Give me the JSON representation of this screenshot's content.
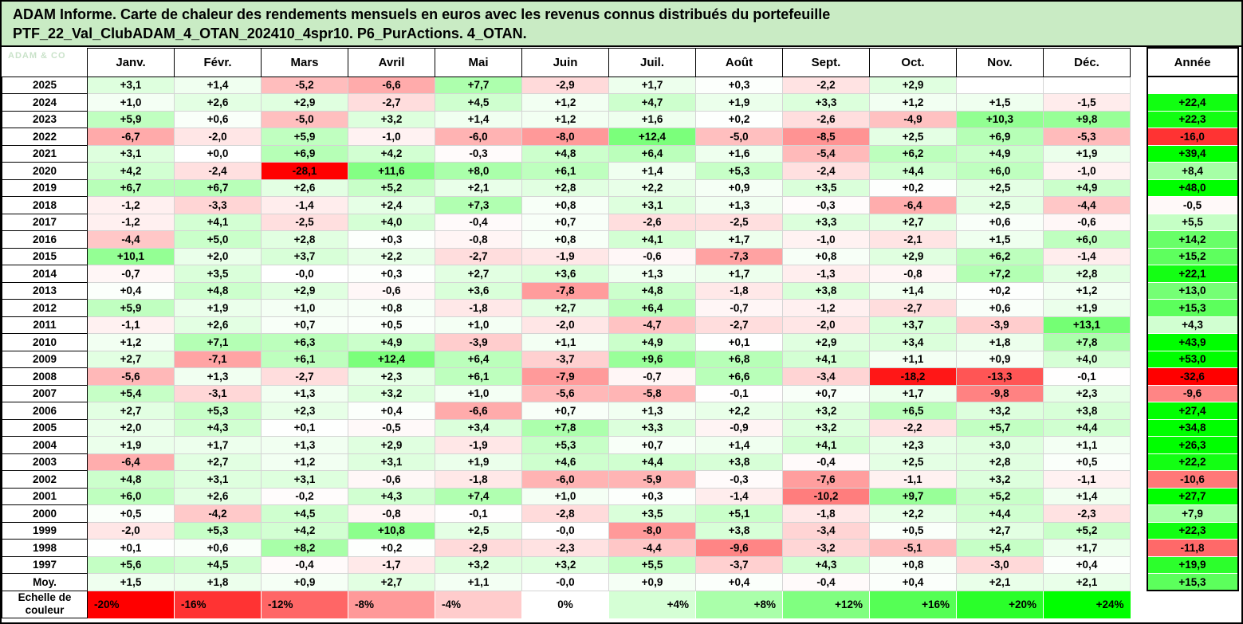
{
  "page": {
    "title_line1": "ADAM Informe. Carte de chaleur des rendements mensuels en euros avec les revenus connus distribués du portefeuille",
    "title_line2": "PTF_22_Val_ClubADAM_4_OTAN_202410_4spr10. P6_PurActions. 4_OTAN.",
    "title_bg": "#c9ebc4",
    "watermark": "ADAM & CO"
  },
  "chart_data": {
    "type": "heatmap",
    "title": "ADAM Informe. Carte de chaleur des rendements mensuels en euros avec les revenus connus distribués du portefeuille PTF_22_Val_ClubADAM_4_OTAN_202410_4spr10. P6_PurActions. 4_OTAN.",
    "columns": [
      "Janv.",
      "Févr.",
      "Mars",
      "Avril",
      "Mai",
      "Juin",
      "Juil.",
      "Août",
      "Sept.",
      "Oct.",
      "Nov.",
      "Déc."
    ],
    "annual_header": "Année",
    "rows": [
      {
        "label": "2025",
        "months": [
          "+3,1",
          "+1,4",
          "-5,2",
          "-6,6",
          "+7,7",
          "-2,9",
          "+1,7",
          "+0,3",
          "-2,2",
          "+2,9",
          "",
          ""
        ],
        "year": ""
      },
      {
        "label": "2024",
        "months": [
          "+1,0",
          "+2,6",
          "+2,9",
          "-2,7",
          "+4,5",
          "+1,2",
          "+4,7",
          "+1,9",
          "+3,3",
          "+1,2",
          "+1,5",
          "-1,5"
        ],
        "year": "+22,4"
      },
      {
        "label": "2023",
        "months": [
          "+5,9",
          "+0,6",
          "-5,0",
          "+3,2",
          "+1,4",
          "+1,2",
          "+1,6",
          "+0,2",
          "-2,6",
          "-4,9",
          "+10,3",
          "+9,8"
        ],
        "year": "+22,3"
      },
      {
        "label": "2022",
        "months": [
          "-6,7",
          "-2,0",
          "+5,9",
          "-1,0",
          "-6,0",
          "-8,0",
          "+12,4",
          "-5,0",
          "-8,5",
          "+2,5",
          "+6,9",
          "-5,3"
        ],
        "year": "-16,0"
      },
      {
        "label": "2021",
        "months": [
          "+3,1",
          "+0,0",
          "+6,9",
          "+4,2",
          "-0,3",
          "+4,8",
          "+6,4",
          "+1,6",
          "-5,4",
          "+6,2",
          "+4,9",
          "+1,9"
        ],
        "year": "+39,4"
      },
      {
        "label": "2020",
        "months": [
          "+4,2",
          "-2,4",
          "-28,1",
          "+11,6",
          "+8,0",
          "+6,1",
          "+1,4",
          "+5,3",
          "-2,4",
          "+4,4",
          "+6,0",
          "-1,0"
        ],
        "year": "+8,4"
      },
      {
        "label": "2019",
        "months": [
          "+6,7",
          "+6,7",
          "+2,6",
          "+5,2",
          "+2,1",
          "+2,8",
          "+2,2",
          "+0,9",
          "+3,5",
          "+0,2",
          "+2,5",
          "+4,9"
        ],
        "year": "+48,0"
      },
      {
        "label": "2018",
        "months": [
          "-1,2",
          "-3,3",
          "-1,4",
          "+2,4",
          "+7,3",
          "+0,8",
          "+3,1",
          "+1,3",
          "-0,3",
          "-6,4",
          "+2,5",
          "-4,4"
        ],
        "year": "-0,5"
      },
      {
        "label": "2017",
        "months": [
          "-1,2",
          "+4,1",
          "-2,5",
          "+4,0",
          "-0,4",
          "+0,7",
          "-2,6",
          "-2,5",
          "+3,3",
          "+2,7",
          "+0,6",
          "-0,6"
        ],
        "year": "+5,5"
      },
      {
        "label": "2016",
        "months": [
          "-4,4",
          "+5,0",
          "+2,8",
          "+0,3",
          "-0,8",
          "+0,8",
          "+4,1",
          "+1,7",
          "-1,0",
          "-2,1",
          "+1,5",
          "+6,0"
        ],
        "year": "+14,2"
      },
      {
        "label": "2015",
        "months": [
          "+10,1",
          "+2,0",
          "+3,7",
          "+2,2",
          "-2,7",
          "-1,9",
          "-0,6",
          "-7,3",
          "+0,8",
          "+2,9",
          "+6,2",
          "-1,4"
        ],
        "year": "+15,2"
      },
      {
        "label": "2014",
        "months": [
          "-0,7",
          "+3,5",
          "-0,0",
          "+0,3",
          "+2,7",
          "+3,6",
          "+1,3",
          "+1,7",
          "-1,3",
          "-0,8",
          "+7,2",
          "+2,8"
        ],
        "year": "+22,1"
      },
      {
        "label": "2013",
        "months": [
          "+0,4",
          "+4,8",
          "+2,9",
          "-0,6",
          "+3,6",
          "-7,8",
          "+4,8",
          "-1,8",
          "+3,8",
          "+1,4",
          "+0,2",
          "+1,2"
        ],
        "year": "+13,0"
      },
      {
        "label": "2012",
        "months": [
          "+5,9",
          "+1,9",
          "+1,0",
          "+0,8",
          "-1,8",
          "+2,7",
          "+6,4",
          "-0,7",
          "-1,2",
          "-2,7",
          "+0,6",
          "+1,9"
        ],
        "year": "+15,3"
      },
      {
        "label": "2011",
        "months": [
          "-1,1",
          "+2,6",
          "+0,7",
          "+0,5",
          "+1,0",
          "-2,0",
          "-4,7",
          "-2,7",
          "-2,0",
          "+3,7",
          "-3,9",
          "+13,1"
        ],
        "year": "+4,3"
      },
      {
        "label": "2010",
        "months": [
          "+1,2",
          "+7,1",
          "+6,3",
          "+4,9",
          "-3,9",
          "+1,1",
          "+4,9",
          "+0,1",
          "+2,9",
          "+3,4",
          "+1,8",
          "+7,8"
        ],
        "year": "+43,9"
      },
      {
        "label": "2009",
        "months": [
          "+2,7",
          "-7,1",
          "+6,1",
          "+12,4",
          "+6,4",
          "-3,7",
          "+9,6",
          "+6,8",
          "+4,1",
          "+1,1",
          "+0,9",
          "+4,0"
        ],
        "year": "+53,0"
      },
      {
        "label": "2008",
        "months": [
          "-5,6",
          "+1,3",
          "-2,7",
          "+2,3",
          "+6,1",
          "-7,9",
          "-0,7",
          "+6,6",
          "-3,4",
          "-18,2",
          "-13,3",
          "-0,1"
        ],
        "year": "-32,6"
      },
      {
        "label": "2007",
        "months": [
          "+5,4",
          "-3,1",
          "+1,3",
          "+3,2",
          "+1,0",
          "-5,6",
          "-5,8",
          "-0,1",
          "+0,7",
          "+1,7",
          "-9,8",
          "+2,3"
        ],
        "year": "-9,6"
      },
      {
        "label": "2006",
        "months": [
          "+2,7",
          "+5,3",
          "+2,3",
          "+0,4",
          "-6,6",
          "+0,7",
          "+1,3",
          "+2,2",
          "+3,2",
          "+6,5",
          "+3,2",
          "+3,8"
        ],
        "year": "+27,4"
      },
      {
        "label": "2005",
        "months": [
          "+2,0",
          "+4,3",
          "+0,1",
          "-0,5",
          "+3,4",
          "+7,8",
          "+3,3",
          "-0,9",
          "+3,2",
          "-2,2",
          "+5,7",
          "+4,4"
        ],
        "year": "+34,8"
      },
      {
        "label": "2004",
        "months": [
          "+1,9",
          "+1,7",
          "+1,3",
          "+2,9",
          "-1,9",
          "+5,3",
          "+0,7",
          "+1,4",
          "+4,1",
          "+2,3",
          "+3,0",
          "+1,1"
        ],
        "year": "+26,3"
      },
      {
        "label": "2003",
        "months": [
          "-6,4",
          "+2,7",
          "+1,2",
          "+3,1",
          "+1,9",
          "+4,6",
          "+4,4",
          "+3,8",
          "-0,4",
          "+2,5",
          "+2,8",
          "+0,5"
        ],
        "year": "+22,2"
      },
      {
        "label": "2002",
        "months": [
          "+4,8",
          "+3,1",
          "+3,1",
          "-0,6",
          "-1,8",
          "-6,0",
          "-5,9",
          "-0,3",
          "-7,6",
          "-1,1",
          "+3,2",
          "-1,1"
        ],
        "year": "-10,6"
      },
      {
        "label": "2001",
        "months": [
          "+6,0",
          "+2,6",
          "-0,2",
          "+4,3",
          "+7,4",
          "+1,0",
          "+0,3",
          "-1,4",
          "-10,2",
          "+9,7",
          "+5,2",
          "+1,4"
        ],
        "year": "+27,7"
      },
      {
        "label": "2000",
        "months": [
          "+0,5",
          "-4,2",
          "+4,5",
          "-0,8",
          "-0,1",
          "-2,8",
          "+3,5",
          "+5,1",
          "-1,8",
          "+2,2",
          "+4,4",
          "-2,3"
        ],
        "year": "+7,9"
      },
      {
        "label": "1999",
        "months": [
          "-2,0",
          "+5,3",
          "+4,2",
          "+10,8",
          "+2,5",
          "-0,0",
          "-8,0",
          "+3,8",
          "-3,4",
          "+0,5",
          "+2,7",
          "+5,2"
        ],
        "year": "+22,3"
      },
      {
        "label": "1998",
        "months": [
          "+0,1",
          "+0,6",
          "+8,2",
          "+0,2",
          "-2,9",
          "-2,3",
          "-4,4",
          "-9,6",
          "-3,2",
          "-5,1",
          "+5,4",
          "+1,7"
        ],
        "year": "-11,8"
      },
      {
        "label": "1997",
        "months": [
          "+5,6",
          "+4,5",
          "-0,4",
          "-1,7",
          "+3,2",
          "+3,2",
          "+5,5",
          "-3,7",
          "+4,3",
          "+0,8",
          "-3,0",
          "+0,4"
        ],
        "year": "+19,9"
      }
    ],
    "average_row": {
      "label": "Moy.",
      "months": [
        "+1,5",
        "+1,8",
        "+0,9",
        "+2,7",
        "+1,1",
        "-0,0",
        "+0,9",
        "+0,4",
        "-0,4",
        "+0,4",
        "+2,1",
        "+2,1"
      ],
      "year": "+15,3"
    },
    "color_scale": {
      "label": "Echelle de couleur",
      "stops": [
        "-20%",
        "-16%",
        "-12%",
        "-8%",
        "-4%",
        "0%",
        "+4%",
        "+8%",
        "+12%",
        "+16%",
        "+20%",
        "+24%"
      ]
    },
    "color_mapping": {
      "full_red_at": -20,
      "white_at": 0,
      "full_green_at": 24,
      "red": "#ff0000",
      "white": "#ffffff",
      "green": "#00ff00"
    }
  }
}
